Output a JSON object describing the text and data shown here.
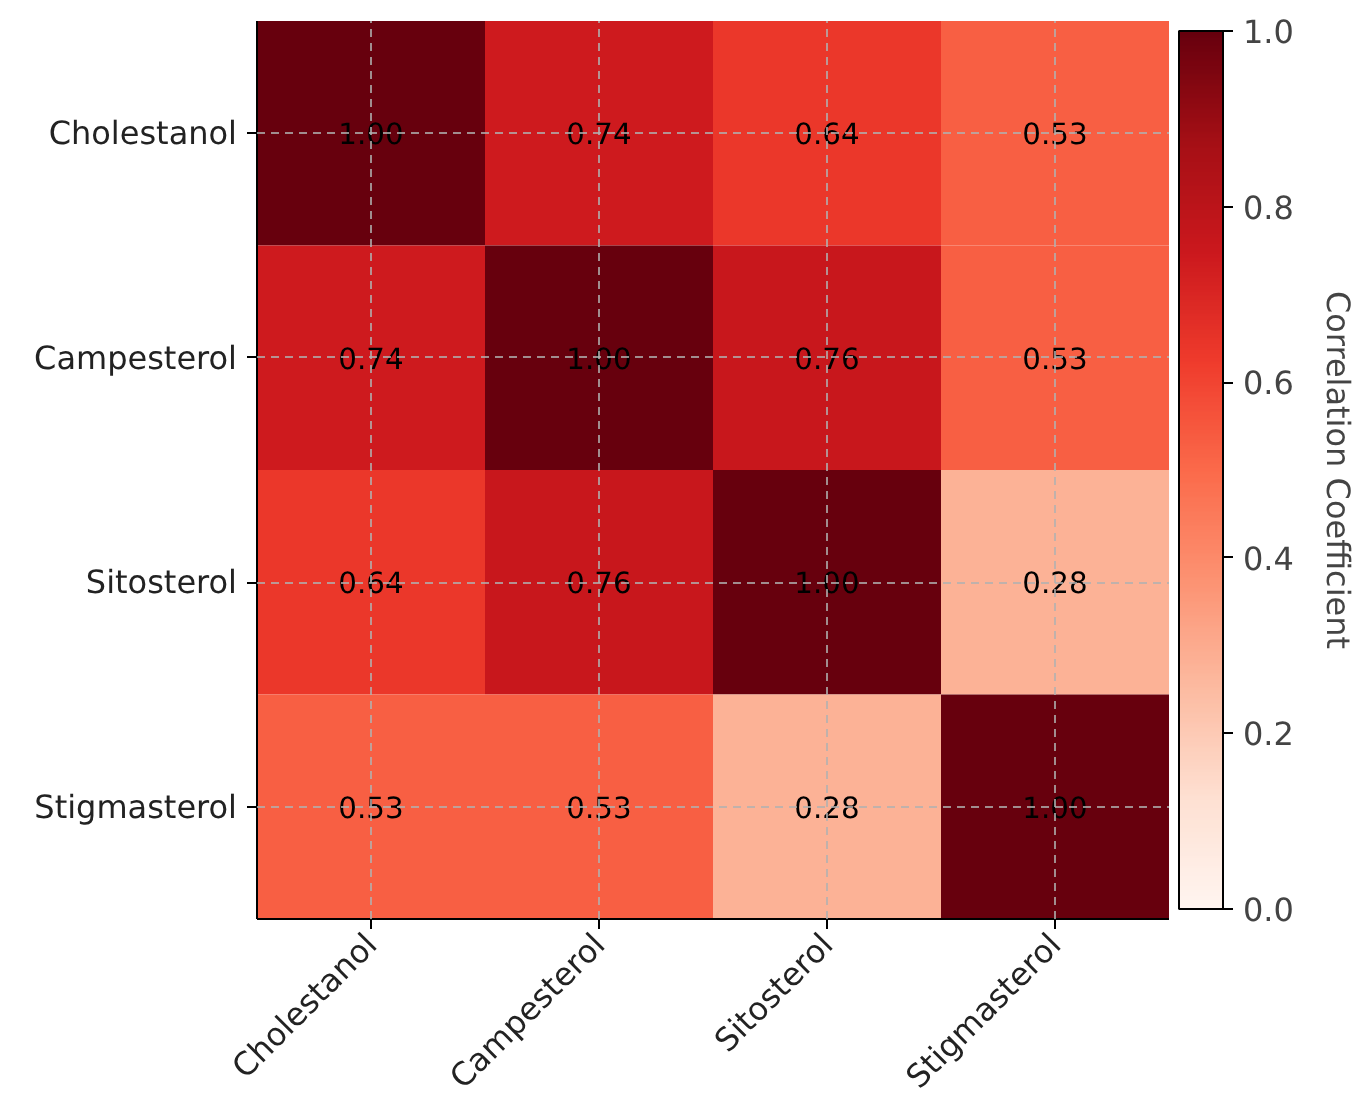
{
  "chart_data": {
    "type": "heatmap",
    "categories": [
      "Cholestanol",
      "Campesterol",
      "Sitosterol",
      "Stigmasterol"
    ],
    "y_categories": [
      "Cholestanol",
      "Campesterol",
      "Sitosterol",
      "Stigmasterol"
    ],
    "cells": [
      [
        1.0,
        0.74,
        0.64,
        0.53
      ],
      [
        0.74,
        1.0,
        0.76,
        0.53
      ],
      [
        0.64,
        0.76,
        1.0,
        0.28
      ],
      [
        0.53,
        0.53,
        0.28,
        1.0
      ]
    ],
    "cell_labels": [
      [
        "1.00",
        "0.74",
        "0.64",
        "0.53"
      ],
      [
        "0.74",
        "1.00",
        "0.76",
        "0.53"
      ],
      [
        "0.64",
        "0.76",
        "1.00",
        "0.28"
      ],
      [
        "0.53",
        "0.53",
        "0.28",
        "1.00"
      ]
    ],
    "clabel": "Correlation Coefficient",
    "clim": [
      0,
      1
    ],
    "cticks": [
      {
        "value": 0,
        "label": "0.0"
      },
      {
        "value": 0.2,
        "label": "0.2"
      },
      {
        "value": 0.4,
        "label": "0.4"
      },
      {
        "value": 0.6,
        "label": "0.6"
      },
      {
        "value": 0.8,
        "label": "0.8"
      },
      {
        "value": 1,
        "label": "1.0"
      }
    ],
    "grid": true
  }
}
